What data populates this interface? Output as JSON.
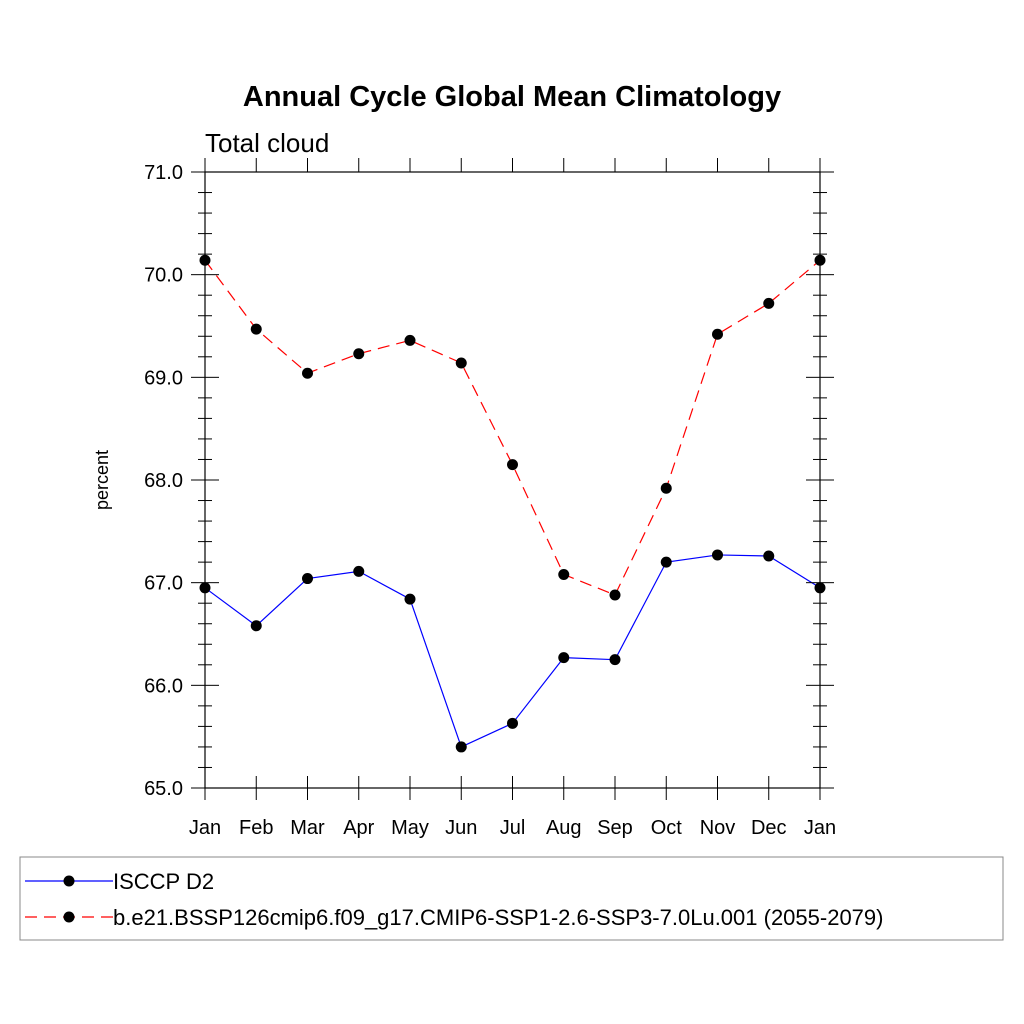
{
  "chart_data": {
    "type": "line",
    "title": "Annual Cycle Global Mean Climatology",
    "subtitle": "Total cloud",
    "ylabel": "percent",
    "xlabel": "",
    "categories": [
      "Jan",
      "Feb",
      "Mar",
      "Apr",
      "May",
      "Jun",
      "Jul",
      "Aug",
      "Sep",
      "Oct",
      "Nov",
      "Dec",
      "Jan"
    ],
    "ylim": [
      65.0,
      71.0
    ],
    "yticks": [
      "65.0",
      "66.0",
      "67.0",
      "68.0",
      "69.0",
      "70.0",
      "71.0"
    ],
    "grid": false,
    "legend_position": "bottom",
    "series": [
      {
        "name": "ISCCP D2",
        "color": "#0000ff",
        "dash": "solid",
        "marker": "filled-circle",
        "values": [
          66.95,
          66.58,
          67.04,
          67.11,
          66.84,
          65.4,
          65.63,
          66.27,
          66.25,
          67.2,
          67.27,
          67.26,
          66.95
        ]
      },
      {
        "name": "b.e21.BSSP126cmip6.f09_g17.CMIP6-SSP1-2.6-SSP3-7.0Lu.001 (2055-2079)",
        "color": "#ff0000",
        "dash": "dashed",
        "marker": "filled-circle",
        "values": [
          70.14,
          69.47,
          69.04,
          69.23,
          69.36,
          69.14,
          68.15,
          67.08,
          66.88,
          67.92,
          69.42,
          69.72,
          70.14
        ]
      }
    ]
  }
}
